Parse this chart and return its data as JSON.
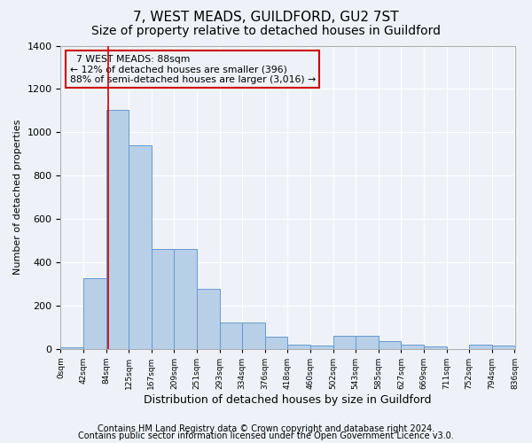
{
  "title1": "7, WEST MEADS, GUILDFORD, GU2 7ST",
  "title2": "Size of property relative to detached houses in Guildford",
  "xlabel": "Distribution of detached houses by size in Guildford",
  "ylabel": "Number of detached properties",
  "annotation_line1": "  7 WEST MEADS: 88sqm",
  "annotation_line2": "← 12% of detached houses are smaller (396)",
  "annotation_line3": "88% of semi-detached houses are larger (3,016) →",
  "footer1": "Contains HM Land Registry data © Crown copyright and database right 2024.",
  "footer2": "Contains public sector information licensed under the Open Government Licence v3.0.",
  "bar_color": "#b8cfe8",
  "bar_edge_color": "#6699cc",
  "vline_color": "#cc0000",
  "vline_x": 88,
  "bin_edges": [
    0,
    42,
    84,
    125,
    167,
    209,
    251,
    293,
    334,
    376,
    418,
    460,
    502,
    543,
    585,
    627,
    669,
    711,
    752,
    794,
    836
  ],
  "bar_heights": [
    8,
    325,
    1105,
    940,
    460,
    460,
    275,
    120,
    120,
    55,
    20,
    15,
    60,
    60,
    35,
    20,
    10,
    0,
    20,
    15
  ],
  "ylim": [
    0,
    1400
  ],
  "yticks": [
    0,
    200,
    400,
    600,
    800,
    1000,
    1200,
    1400
  ],
  "bg_color": "#eef2f8",
  "grid_color": "#ffffff",
  "annotation_box_color": "#cc0000",
  "title1_fontsize": 11,
  "title2_fontsize": 10,
  "footer_fontsize": 7
}
